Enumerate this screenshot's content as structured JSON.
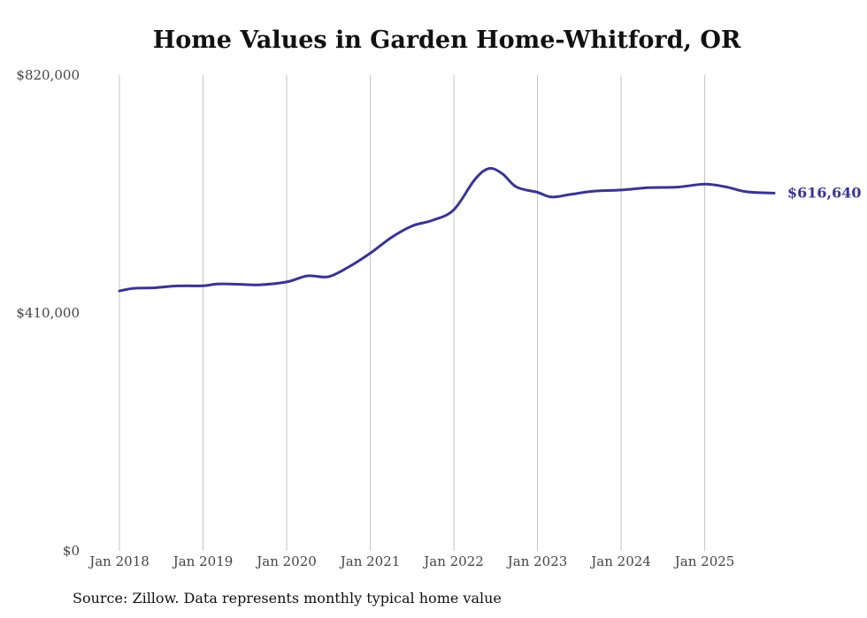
{
  "chart_data": {
    "type": "line",
    "title": "Home Values in Garden Home-Whitford, OR",
    "xlabel": "",
    "ylabel": "",
    "ylim": [
      0,
      820000
    ],
    "y_ticks": [
      0,
      410000,
      820000
    ],
    "y_tick_labels": [
      "$0",
      "$410,000",
      "$820,000"
    ],
    "x_ticks": [
      2018,
      2019,
      2020,
      2021,
      2022,
      2023,
      2024,
      2025
    ],
    "x_tick_labels": [
      "Jan 2018",
      "Jan 2019",
      "Jan 2020",
      "Jan 2021",
      "Jan 2022",
      "Jan 2023",
      "Jan 2024",
      "Jan 2025"
    ],
    "grid": "vertical",
    "series": [
      {
        "name": "Typical home value",
        "color": "#3a3490",
        "points": [
          [
            2018.0,
            448000
          ],
          [
            2018.17,
            452500
          ],
          [
            2018.42,
            453500
          ],
          [
            2018.67,
            456500
          ],
          [
            2019.0,
            457000
          ],
          [
            2019.17,
            460000
          ],
          [
            2019.42,
            459500
          ],
          [
            2019.67,
            458500
          ],
          [
            2020.0,
            463500
          ],
          [
            2020.25,
            474000
          ],
          [
            2020.5,
            472500
          ],
          [
            2020.75,
            490000
          ],
          [
            2021.0,
            513000
          ],
          [
            2021.25,
            540000
          ],
          [
            2021.5,
            560000
          ],
          [
            2021.75,
            570000
          ],
          [
            2022.0,
            588000
          ],
          [
            2022.25,
            640000
          ],
          [
            2022.42,
            659000
          ],
          [
            2022.58,
            650000
          ],
          [
            2022.75,
            627000
          ],
          [
            2023.0,
            618000
          ],
          [
            2023.17,
            610000
          ],
          [
            2023.42,
            615000
          ],
          [
            2023.67,
            620000
          ],
          [
            2024.0,
            622000
          ],
          [
            2024.33,
            626000
          ],
          [
            2024.67,
            627000
          ],
          [
            2025.0,
            632000
          ],
          [
            2025.25,
            627500
          ],
          [
            2025.5,
            619000
          ],
          [
            2025.83,
            616640
          ]
        ]
      }
    ],
    "end_label": "$616,640",
    "source": "Source: Zillow. Data represents monthly typical home value"
  }
}
